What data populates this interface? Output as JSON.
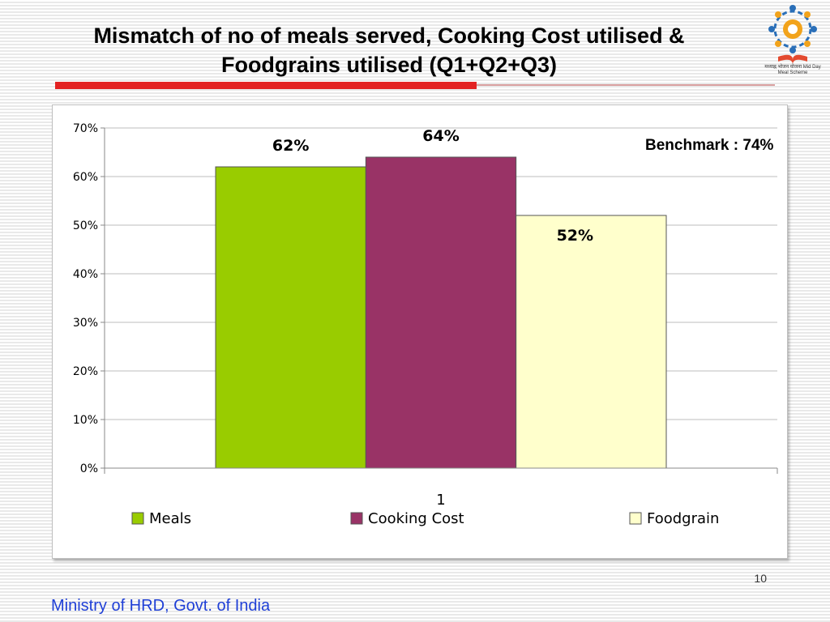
{
  "slide": {
    "title_line1": "Mismatch of no of meals served, Cooking Cost utilised &",
    "title_line2": "Foodgrains utilised (Q1+Q2+Q3)",
    "logo_caption": "मध्याह्न भोजन योजना Mid Day Meal Scheme",
    "benchmark": "Benchmark : 74%",
    "page_number": "10",
    "footer": "Ministry of HRD, Govt. of India",
    "colors": {
      "accent": "#e32222",
      "footer_text": "#1f3fd6"
    }
  },
  "chart_data": {
    "type": "bar",
    "categories": [
      "1"
    ],
    "series": [
      {
        "name": "Meals",
        "values": [
          62
        ],
        "label": "62%",
        "color": "#99cc00"
      },
      {
        "name": "Cooking Cost",
        "values": [
          64
        ],
        "label": "64%",
        "color": "#993366"
      },
      {
        "name": "Foodgrain",
        "values": [
          52
        ],
        "label": "52%",
        "color": "#ffffcc"
      }
    ],
    "title": "",
    "xlabel": "",
    "ylabel": "",
    "ylim": [
      0,
      70
    ],
    "yticks": [
      0,
      10,
      20,
      30,
      40,
      50,
      60,
      70
    ],
    "ytick_labels": [
      "0%",
      "10%",
      "20%",
      "30%",
      "40%",
      "50%",
      "60%",
      "70%"
    ],
    "grid": true,
    "legend": "bottom",
    "annotation": "Benchmark : 74%"
  }
}
